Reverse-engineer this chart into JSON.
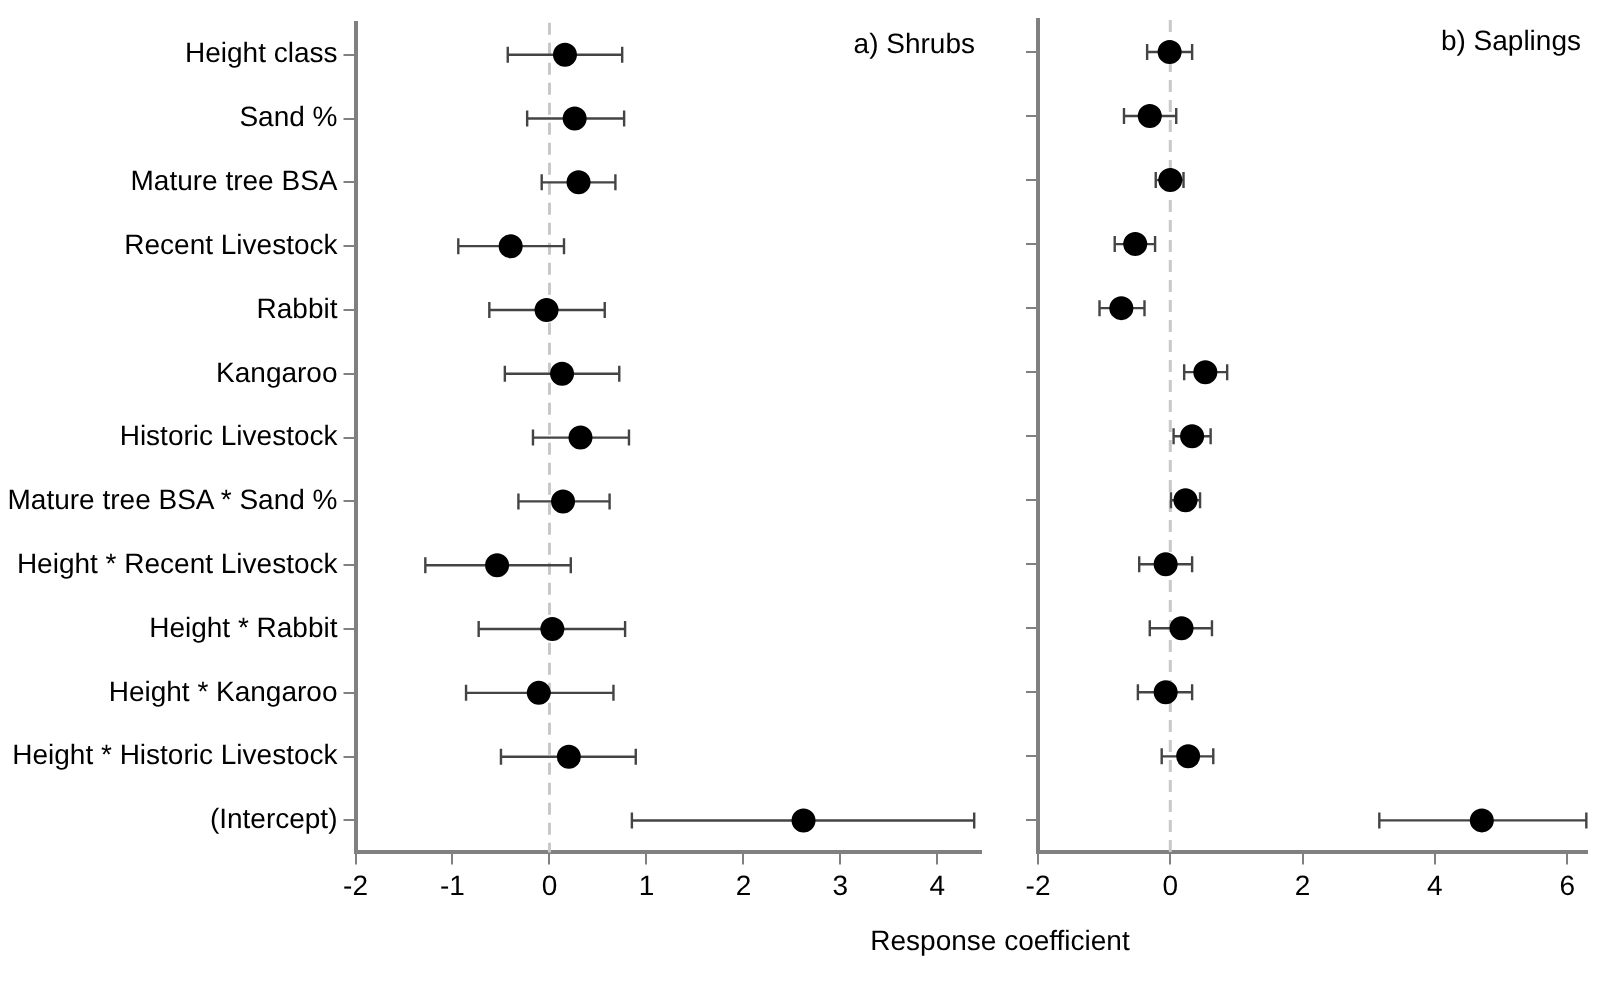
{
  "chart_data": [
    {
      "type": "scatter",
      "title": "a) Shrubs",
      "xlabel": "Response coefficient",
      "orientation": "horizontal",
      "marker": "circle",
      "grid": false,
      "legend": false,
      "categories": [
        "Height class",
        "Sand %",
        "Mature tree BSA",
        "Recent Livestock",
        "Rabbit",
        "Kangaroo",
        "Historic Livestock",
        "Mature tree BSA * Sand %",
        "Height * Recent Livestock",
        "Height * Rabbit",
        "Height * Kangaroo",
        "Height * Historic Livestock",
        "(Intercept)"
      ],
      "series": [
        {
          "color": "#000000",
          "values": [
            0.16,
            0.26,
            0.3,
            -0.4,
            -0.03,
            0.13,
            0.32,
            0.14,
            -0.54,
            0.03,
            -0.11,
            0.2,
            2.62
          ],
          "errors": [
            [
              -0.43,
              0.75
            ],
            [
              -0.23,
              0.77
            ],
            [
              -0.08,
              0.68
            ],
            [
              -0.94,
              0.15
            ],
            [
              -0.62,
              0.57
            ],
            [
              -0.46,
              0.72
            ],
            [
              -0.17,
              0.82
            ],
            [
              -0.32,
              0.62
            ],
            [
              -1.28,
              0.22
            ],
            [
              -0.73,
              0.78
            ],
            [
              -0.86,
              0.66
            ],
            [
              -0.5,
              0.89
            ],
            [
              0.85,
              4.38
            ]
          ]
        }
      ],
      "xlim": [
        -2,
        4.45
      ],
      "xticks": [
        -2,
        -1,
        0,
        1,
        2,
        3,
        4
      ],
      "ref_lines": [
        {
          "axis": "x",
          "value": 0,
          "color": "#c8c8c8",
          "line_style": "dashed"
        }
      ]
    },
    {
      "type": "scatter",
      "title": "b) Saplings",
      "orientation": "horizontal",
      "marker": "circle",
      "grid": false,
      "legend": false,
      "tick_labels": "x",
      "categories": [
        null,
        null,
        null,
        null,
        null,
        null,
        null,
        null,
        null,
        null,
        null,
        null,
        null
      ],
      "series": [
        {
          "color": "#000000",
          "values": [
            -0.01,
            -0.31,
            0.0,
            -0.53,
            -0.74,
            0.53,
            0.33,
            0.23,
            -0.07,
            0.17,
            -0.07,
            0.27,
            4.71
          ],
          "errors": [
            [
              -0.35,
              0.33
            ],
            [
              -0.7,
              0.09
            ],
            [
              -0.22,
              0.2
            ],
            [
              -0.84,
              -0.23
            ],
            [
              -1.07,
              -0.39
            ],
            [
              0.21,
              0.86
            ],
            [
              0.05,
              0.61
            ],
            [
              0.01,
              0.45
            ],
            [
              -0.47,
              0.33
            ],
            [
              -0.31,
              0.63
            ],
            [
              -0.49,
              0.33
            ],
            [
              -0.13,
              0.65
            ],
            [
              3.16,
              6.29
            ]
          ]
        }
      ],
      "xlim": [
        -2,
        6.3
      ],
      "xticks": [
        -2,
        0,
        2,
        4,
        6
      ],
      "ref_lines": [
        {
          "axis": "x",
          "value": 0,
          "color": "#c8c8c8",
          "line_style": "dashed"
        }
      ]
    }
  ]
}
